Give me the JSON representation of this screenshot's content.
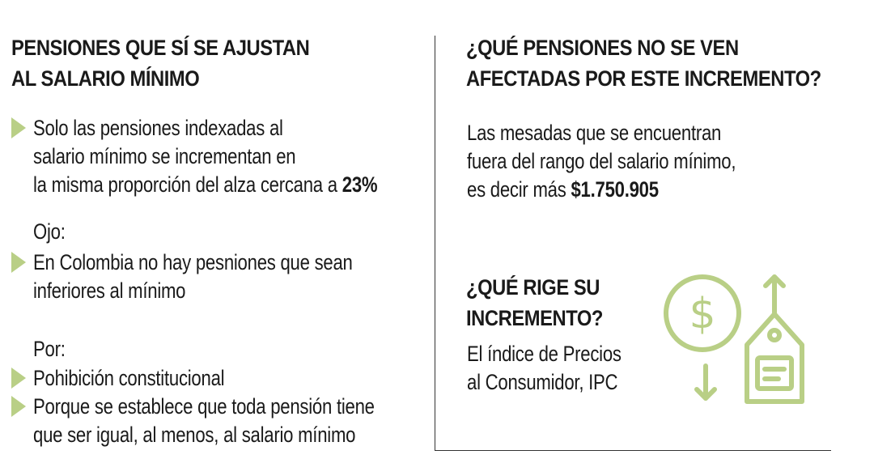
{
  "left": {
    "heading_line1": "PENSIONES QUE SÍ SE AJUSTAN",
    "heading_line2": "AL SALARIO MÍNIMO",
    "bullet1": {
      "line1": "Solo las pensiones indexadas al",
      "line2": "salario mínimo se incrementan en",
      "line3_prefix": "la misma proporción del alza cercana a ",
      "line3_bold": "23%"
    },
    "ojo_label": "Ojo:",
    "bullet2": {
      "line1": "En Colombia no hay pesniones que sean",
      "line2": "inferiores al mínimo"
    },
    "por_label": "Por:",
    "bullet3": {
      "line1": "Pohibición constitucional"
    },
    "bullet4": {
      "line1": "Porque se establece que toda pensión tiene",
      "line2": "que ser igual, al menos, al salario mínimo"
    }
  },
  "right": {
    "heading_line1": "¿QUÉ PENSIONES NO SE VEN",
    "heading_line2": "AFECTADAS POR ESTE INCREMENTO?",
    "para1": {
      "line1": "Las mesadas que se encuentran",
      "line2": "fuera del rango del salario mínimo,",
      "line3_prefix": "es decir más ",
      "line3_bold": "$1.750.905"
    },
    "heading2_line1": "¿QUÉ RIGE SU",
    "heading2_line2": "INCREMENTO?",
    "para2": {
      "line1": "El índice de Precios",
      "line2": "al Consumidor, IPC"
    },
    "icon": "dollar-price-tag-up-down-icon",
    "icon_dollar_symbol": "$"
  },
  "colors": {
    "accent": "#b9cf86",
    "text": "#1a1a1a",
    "divider": "#333333"
  }
}
